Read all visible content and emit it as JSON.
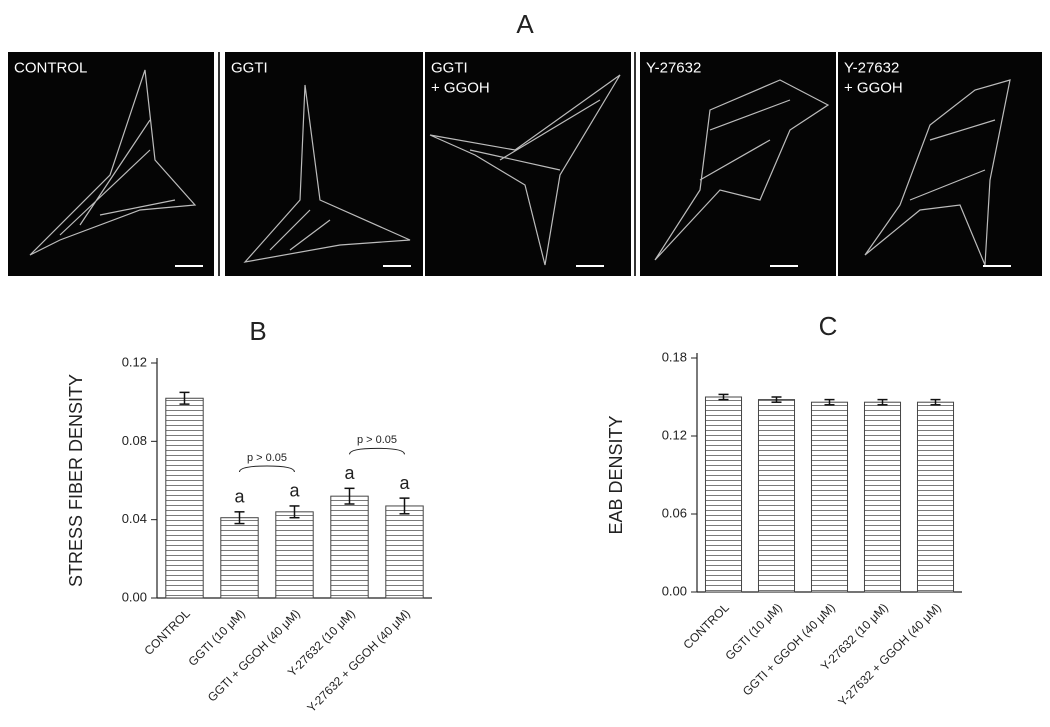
{
  "panel_a": {
    "label": "A",
    "images": [
      {
        "lines": [
          "CONTROL"
        ]
      },
      {
        "lines": [
          "GGTI"
        ]
      },
      {
        "lines": [
          "GGTI",
          "+ GGOH"
        ]
      },
      {
        "lines": [
          "Y-27632"
        ]
      },
      {
        "lines": [
          "Y-27632",
          "+ GGOH"
        ]
      }
    ]
  },
  "chart_data": [
    {
      "type": "bar",
      "title": "B",
      "y_label": "STRESS FIBER DENSITY",
      "color": "#7a7a7a",
      "categories": [
        "CONTROL",
        "GGTI (10 μM)",
        "GGTI + GGOH (40 μM)",
        "Y-27632 (10 μM)",
        "Y-27632 + GGOH (40 μM)"
      ],
      "values": [
        0.102,
        0.041,
        0.044,
        0.052,
        0.047
      ],
      "errors": [
        0.003,
        0.003,
        0.003,
        0.004,
        0.004
      ],
      "ylim": [
        0,
        0.12
      ],
      "yticks": [
        {
          "value": 0,
          "label": "0.00"
        },
        0.04,
        0.08,
        0.12
      ],
      "annotations": [
        {
          "text": "a",
          "category": 1
        },
        {
          "text": "a",
          "category": 2
        },
        {
          "text": "a",
          "category": 3
        },
        {
          "text": "a",
          "category": 4
        }
      ],
      "brackets": [
        {
          "text": "p > 0.05",
          "from": 1,
          "to": 2
        },
        {
          "text": "p > 0.05",
          "from": 3,
          "to": 4
        }
      ]
    },
    {
      "type": "bar",
      "title": "C",
      "y_label": "EAB DENSITY",
      "color": "#7a7a7a",
      "categories": [
        "CONTROL",
        "GGTI (10 μM)",
        "GGTI + GGOH (40 μM)",
        "Y-27632 (10 μM)",
        "Y-27632 + GGOH (40 μM)"
      ],
      "values": [
        0.15,
        0.148,
        0.146,
        0.146,
        0.146
      ],
      "errors": [
        0.002,
        0.002,
        0.002,
        0.002,
        0.002
      ],
      "ylim": [
        0,
        0.18
      ],
      "yticks": [
        {
          "value": 0,
          "label": "0.00"
        },
        0.06,
        0.12,
        0.18
      ]
    }
  ]
}
